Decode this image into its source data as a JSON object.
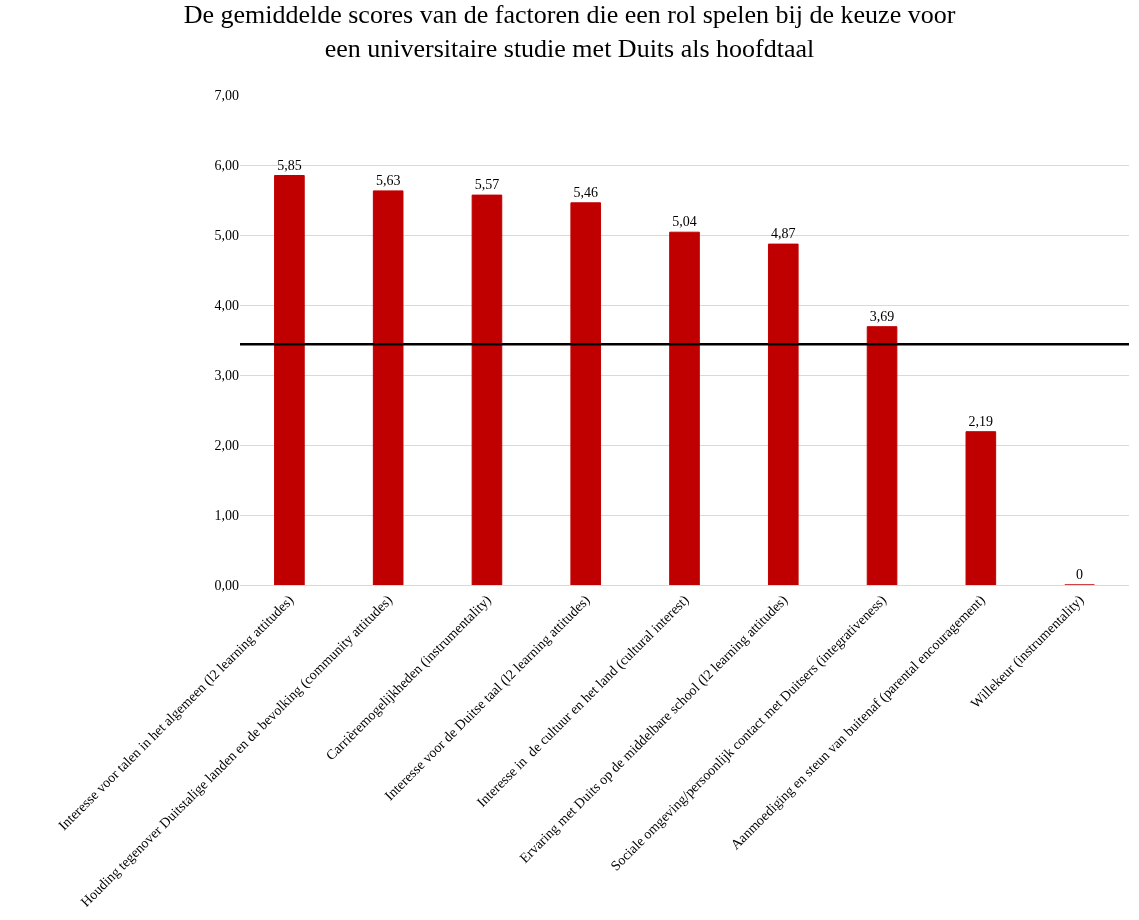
{
  "chart_data": {
    "type": "bar",
    "title": "De gemiddelde scores van de factoren die een rol spelen bij de keuze voor\neen universitaire studie met Duits als hoofdtaal",
    "categories": [
      "Interesse voor talen in het algemeen (l2 learning attitudes)",
      "Houding tegenover Duitstalige landen en de bevolking (community attitudes)",
      "Carrièremogelijkheden (instrumentality)",
      "Interesse voor de Duitse taal (l2 learning attitudes)",
      "Interesse in  de cultuur en het land (cultural interest)",
      "Ervaring met Duits op de middelbare school (l2 learning attitudes)",
      "Sociale omgeving/persoonlijk contact met Duitsers (integrativeness)",
      "Aanmoediging en steun van buitenaf (parental encouragement)",
      "Willekeur (instrumentality)"
    ],
    "values": [
      5.85,
      5.63,
      5.57,
      5.46,
      5.04,
      4.87,
      3.69,
      2.19,
      0
    ],
    "value_labels": [
      "5,85",
      "5,63",
      "5,57",
      "5,46",
      "5,04",
      "4,87",
      "3,69",
      "2,19",
      "0"
    ],
    "color": "#c00000",
    "ylim": [
      0,
      7
    ],
    "yticks": [
      {
        "value": 0,
        "label": "0,00"
      },
      {
        "value": 1,
        "label": "1,00"
      },
      {
        "value": 2,
        "label": "2,00"
      },
      {
        "value": 3,
        "label": "3,00"
      },
      {
        "value": 4,
        "label": "4,00"
      },
      {
        "value": 5,
        "label": "5,00"
      },
      {
        "value": 6,
        "label": "6,00"
      },
      {
        "value": 7,
        "label": "7,00"
      }
    ],
    "grid": "y",
    "legend": false,
    "ref_lines": [
      {
        "axis": "y",
        "value": 3.44,
        "color": "#000000",
        "line_style": "solid"
      }
    ]
  }
}
